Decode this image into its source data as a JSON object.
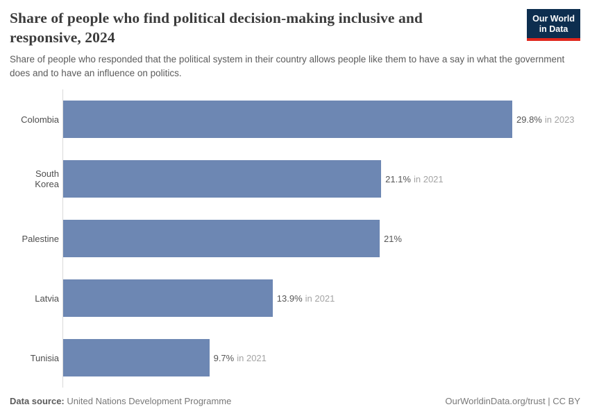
{
  "chart_data": {
    "type": "bar",
    "orientation": "horizontal",
    "title": "Share of people who find political decision-making inclusive and responsive, 2024",
    "subtitle": "Share of people who responded that the political system in their country allows people like them to have a say in what the government does and to have an influence on politics.",
    "categories": [
      "Colombia",
      "South Korea",
      "Palestine",
      "Latvia",
      "Tunisia"
    ],
    "values": [
      29.8,
      21.1,
      21,
      13.9,
      9.7
    ],
    "value_labels": [
      "29.8%",
      "21.1%",
      "21%",
      "13.9%",
      "9.7%"
    ],
    "year_annotations": [
      "in 2023",
      "in 2021",
      "",
      "in 2021",
      "in 2021"
    ],
    "xlim": [
      0,
      29.8
    ],
    "grid": false,
    "legend": false,
    "bar_color": "#6d87b3",
    "axis_line_color": "#d9d9d9"
  },
  "logo": {
    "line1": "Our World",
    "line2": "in Data",
    "bg_color": "#0d2e4f",
    "accent_color": "#e0261c"
  },
  "footer": {
    "datasource_label": "Data source:",
    "datasource_value": "United Nations Development Programme",
    "credit": "OurWorldinData.org/trust | CC BY"
  }
}
